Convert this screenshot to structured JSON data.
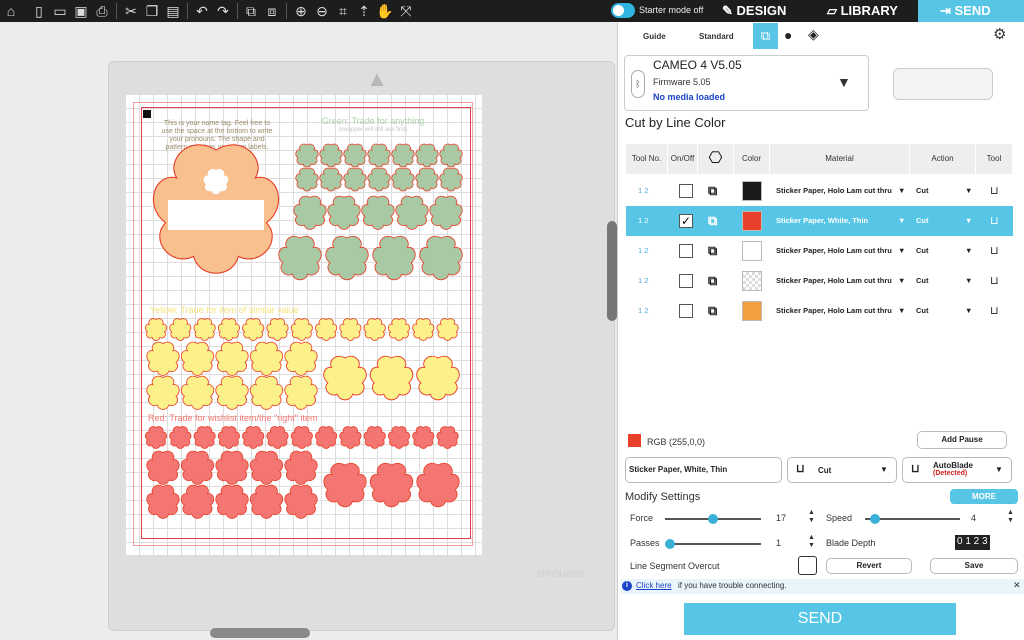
{
  "topbar": {
    "starter_mode": "Starter mode off",
    "tabs": {
      "design": "DESIGN",
      "library": "LIBRARY",
      "send": "SEND"
    },
    "icons": [
      "home-icon",
      "new-page-icon",
      "open-icon",
      "save-icon",
      "print-icon",
      "cut-icon",
      "copy-icon",
      "paste-icon",
      "undo-icon",
      "redo-icon",
      "group-icon",
      "ungroup-icon",
      "zoom-in-icon",
      "zoom-out-icon",
      "zoom-fit-icon",
      "pan-icon",
      "move-icon",
      "fit-page-icon"
    ]
  },
  "panel": {
    "modes": {
      "guide": "Guide",
      "standard": "Standard"
    },
    "machine": {
      "name": "CAMEO 4 V5.05",
      "firmware": "Firmware 5.05",
      "status": "No media loaded"
    },
    "section_title": "Cut by Line Color",
    "columns": [
      "Tool No.",
      "On/Off",
      "",
      "Color",
      "Material",
      "Action",
      "Tool"
    ],
    "rows": [
      {
        "tools": "1 2",
        "color": "#1a1a1a",
        "material": "Sticker Paper, Holo Lam cut thru",
        "action": "Cut",
        "checked": false,
        "selected": false
      },
      {
        "tools": "1 2",
        "color": "#e8402a",
        "material": "Sticker Paper, White, Thin",
        "action": "Cut",
        "checked": true,
        "selected": true
      },
      {
        "tools": "1 2",
        "color": "#ffffff",
        "material": "Sticker Paper, Holo Lam cut thru",
        "action": "Cut",
        "checked": false,
        "selected": false
      },
      {
        "tools": "1 2",
        "color": "transparent",
        "material": "Sticker Paper, Holo Lam cut thru",
        "action": "Cut",
        "checked": false,
        "selected": false
      },
      {
        "tools": "1 2",
        "color": "#f0a040",
        "material": "Sticker Paper, Holo Lam cut thru",
        "action": "Cut",
        "checked": false,
        "selected": false
      }
    ],
    "rgb": "RGB (255,0,0)",
    "add_pause": "Add Pause",
    "material_field": "Sticker Paper, White, Thin",
    "action_field": "Cut",
    "blade": {
      "name": "AutoBlade",
      "status": "(Detected)"
    },
    "modify": "Modify Settings",
    "more": "MORE",
    "force": {
      "label": "Force",
      "value": "17"
    },
    "speed": {
      "label": "Speed",
      "value": "4"
    },
    "passes": {
      "label": "Passes",
      "value": "1"
    },
    "blade_depth": {
      "label": "Blade Depth",
      "value": "0 1 2 3"
    },
    "overcut": "Line Segment Overcut",
    "revert": "Revert",
    "save": "Save",
    "help": {
      "link": "Click here",
      "text": "if you have trouble connecting."
    },
    "send": "SEND"
  },
  "canvas": {
    "nametag_text": "This is your name tag. Feel free to use the space at the bottom to write your pronouns. The shape and pattern matches your item labels.",
    "green_title": "Green: Trade for anything",
    "green_sub": "(swapper will still ask first)",
    "yellow_title": "Yellow: Trade for item of similar value",
    "red_title": "Red: Trade for wishlist item/the \"right\" item",
    "watermark": "silhouette"
  },
  "colors": {
    "accent": "#57c6e6",
    "green": "#a8c9a4",
    "yellow": "#fbf08a",
    "red": "#f47672",
    "orange": "#f7c08e"
  }
}
